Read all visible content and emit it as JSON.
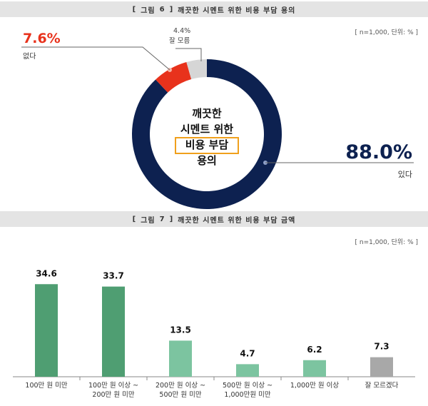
{
  "figure6": {
    "bracket_open": "[",
    "fig_label": "그림",
    "fig_number": "6",
    "bracket_close": "]",
    "title": "깨끗한 시멘트 위한 비용 부담 용의",
    "note": "[ n=1,000, 단위: % ]",
    "center_lines": [
      "깨끗한",
      "시멘트 위한",
      "비용 부담",
      "용의"
    ],
    "colors": {
      "yes": "#0d2150",
      "no": "#e8321c",
      "dont_know": "#d6d6d6"
    }
  },
  "figure7": {
    "bracket_open": "[",
    "fig_label": "그림",
    "fig_number": "7",
    "bracket_close": "]",
    "title": "깨끗한 시멘트 위한 비용 부담 금액",
    "note": "[ n=1,000, 단위: % ]"
  },
  "chart_data": [
    {
      "type": "pie",
      "title": "깨끗한 시멘트 위한 비용 부담 용의",
      "slices": [
        {
          "label": "있다",
          "value": 88.0,
          "display": "88.0%",
          "color": "#0d2150"
        },
        {
          "label": "없다",
          "value": 7.6,
          "display": "7.6%",
          "color": "#e8321c"
        },
        {
          "label": "잘 모름",
          "value": 4.4,
          "display": "4.4%",
          "color": "#d6d6d6"
        }
      ]
    },
    {
      "type": "bar",
      "title": "깨끗한 시멘트 위한 비용 부담 금액",
      "categories": [
        [
          "100만 원 미만"
        ],
        [
          "100만 원 이상 ~",
          "200만 원 미만"
        ],
        [
          "200만 원 이상 ~",
          "500만 원 미만"
        ],
        [
          "500만 원 이상 ~",
          "1,000만원 미만"
        ],
        [
          "1,000만 원 이상"
        ],
        [
          "잘 모르겠다"
        ]
      ],
      "values": [
        34.6,
        33.7,
        13.5,
        4.7,
        6.2,
        7.3
      ],
      "value_labels": [
        "34.6",
        "33.7",
        "13.5",
        "4.7",
        "6.2",
        "7.3"
      ],
      "colors": [
        "#4f9e72",
        "#4f9e72",
        "#7cc4a0",
        "#7cc4a0",
        "#7cc4a0",
        "#a8a8a8"
      ],
      "ylim": [
        0,
        40
      ]
    }
  ]
}
